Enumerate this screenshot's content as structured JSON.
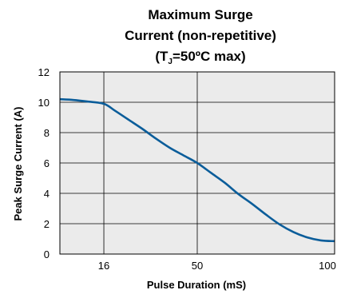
{
  "chart_data": {
    "type": "line",
    "title_line1": "Maximum Surge",
    "title_line2": "Current (non-repetitive)",
    "title_line3_prefix": "(T",
    "title_line3_sub": "J",
    "title_line3_suffix": "=50ºC max)",
    "xlabel": "Pulse Duration (mS)",
    "ylabel": "Peak Surge Current (A)",
    "x_ticks": [
      16,
      50,
      100
    ],
    "y_ticks": [
      0,
      2,
      4,
      6,
      8,
      10,
      12
    ],
    "xlim": [
      0,
      100
    ],
    "ylim": [
      0,
      12
    ],
    "grid": true,
    "colors": {
      "line": "#0b5d9a",
      "plot_bg": "#ebebeb",
      "grid": "#000000"
    },
    "series": [
      {
        "x": [
          0,
          5,
          10,
          16,
          20,
          25,
          30,
          35,
          40,
          45,
          50,
          55,
          60,
          65,
          70,
          75,
          80,
          85,
          90,
          95,
          100
        ],
        "y": [
          10.2,
          10.15,
          10.05,
          9.9,
          9.45,
          8.85,
          8.25,
          7.6,
          7.0,
          6.5,
          6.0,
          5.35,
          4.7,
          3.95,
          3.3,
          2.6,
          1.95,
          1.45,
          1.1,
          0.9,
          0.85
        ]
      }
    ]
  }
}
